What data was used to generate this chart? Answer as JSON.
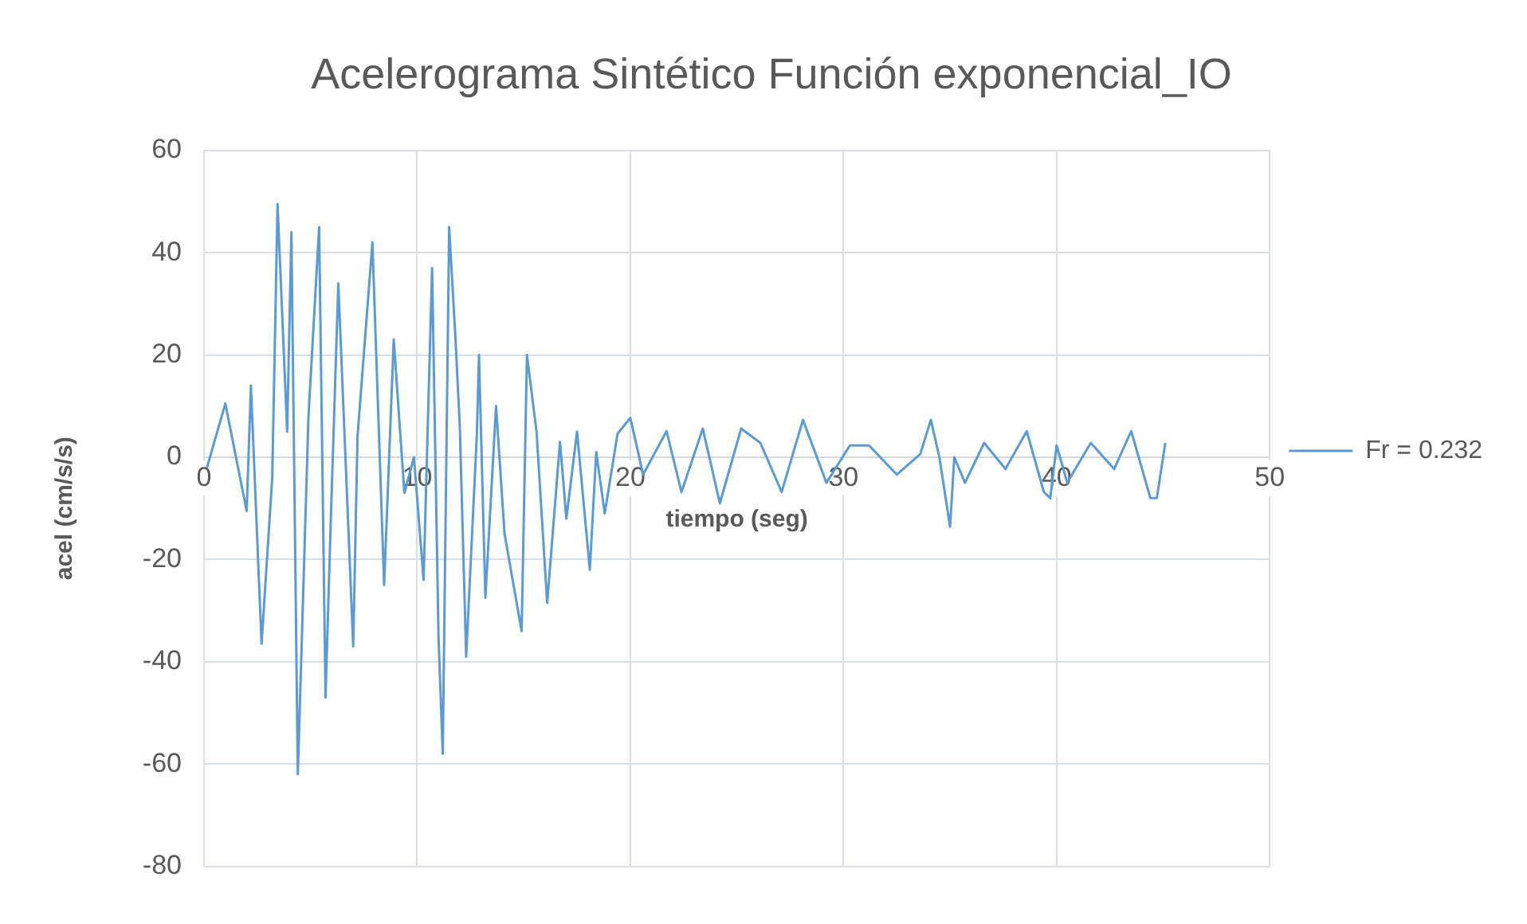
{
  "chart_data": {
    "type": "line",
    "title": "Acelerograma Sintético Función exponencial_IO",
    "xlabel": "tiempo (seg)",
    "ylabel": "acel (cm/s/s)",
    "xlim": [
      0,
      50
    ],
    "xticks": [
      0,
      10,
      20,
      30,
      40,
      50
    ],
    "ylim": [
      -80,
      60
    ],
    "yticks": [
      -80,
      -60,
      -40,
      -20,
      0,
      20,
      40,
      60
    ],
    "grid": true,
    "legend": "right",
    "marker": "none",
    "line_style": "solid",
    "series": [
      {
        "name": "Fr = 0.232",
        "color": "#5b9bd5",
        "x": [
          0.14,
          1.0,
          2.0,
          2.2,
          2.7,
          3.2,
          3.45,
          3.9,
          4.1,
          4.4,
          4.9,
          5.4,
          5.7,
          5.95,
          6.3,
          7.0,
          7.2,
          7.9,
          8.45,
          8.9,
          9.4,
          9.85,
          10.3,
          10.7,
          11.0,
          11.2,
          11.5,
          11.8,
          12.0,
          12.3,
          12.8,
          12.9,
          13.2,
          13.7,
          14.1,
          14.9,
          15.15,
          15.6,
          16.1,
          16.7,
          17.0,
          17.5,
          18.1,
          18.4,
          18.8,
          19.4,
          20.0,
          20.6,
          21.7,
          22.4,
          23.4,
          24.2,
          25.2,
          26.1,
          27.1,
          28.1,
          29.2,
          30.3,
          31.2,
          32.5,
          33.6,
          34.1,
          34.5,
          35.0,
          35.2,
          35.7,
          36.6,
          37.6,
          38.6,
          39.4,
          39.7,
          40.0,
          40.5,
          41.6,
          42.7,
          43.5,
          44.4,
          44.7,
          45.1
        ],
        "values": [
          -2,
          10.5,
          -10.5,
          14,
          -36.5,
          -4,
          49.5,
          5,
          44,
          -62,
          8,
          45,
          -47,
          -12,
          34,
          -37,
          4,
          42,
          -25,
          23,
          -7,
          0,
          -24,
          37,
          -35,
          -58,
          45,
          23,
          6,
          -39,
          4.5,
          20,
          -27.5,
          10,
          -15,
          -34,
          20,
          5,
          -28.5,
          3,
          -12,
          5,
          -22,
          1,
          -11,
          4.6,
          7.7,
          -3.4,
          5.1,
          -6.8,
          5.6,
          -9,
          5.6,
          2.8,
          -6.8,
          7.3,
          -5,
          2.3,
          2.3,
          -3.4,
          0.6,
          7.3,
          0,
          -13.6,
          0,
          -5,
          2.8,
          -2.3,
          5.1,
          -6.8,
          -8,
          2.3,
          -5,
          2.8,
          -2.3,
          5.1,
          -8,
          -8,
          2.8
        ]
      }
    ]
  }
}
